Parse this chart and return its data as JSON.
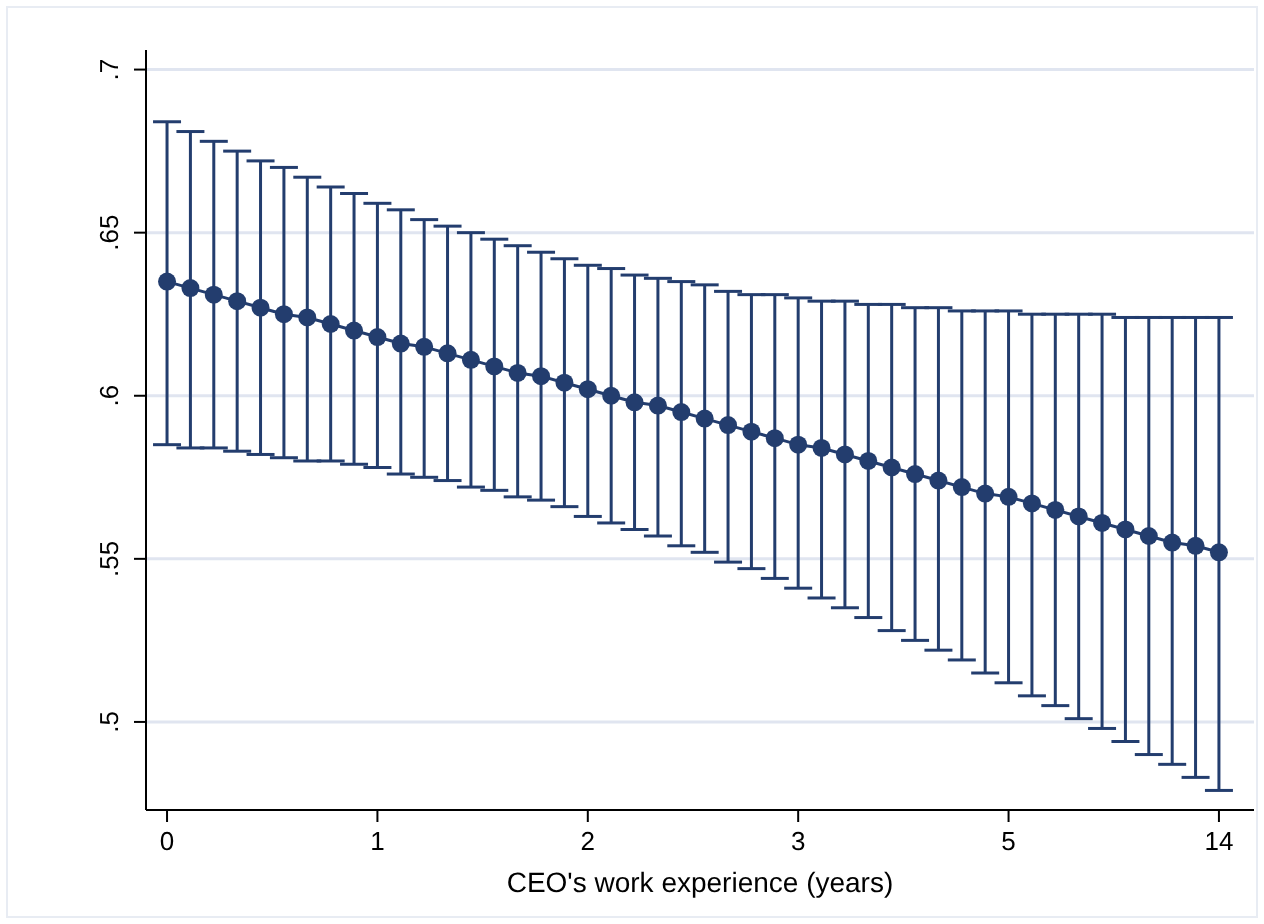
{
  "chart_data": {
    "type": "line",
    "xlabel": "CEO's work experience (years)",
    "categories": [
      "0",
      null,
      null,
      null,
      null,
      null,
      null,
      null,
      null,
      "1",
      null,
      null,
      null,
      null,
      null,
      null,
      null,
      null,
      "2",
      null,
      null,
      null,
      null,
      null,
      null,
      null,
      null,
      "3",
      null,
      null,
      null,
      null,
      null,
      null,
      null,
      null,
      "5",
      null,
      null,
      null,
      null,
      null,
      null,
      null,
      null,
      "14"
    ],
    "series": [
      {
        "color": "#233d6e",
        "marker": "circle",
        "values": [
          0.635,
          0.633,
          0.631,
          0.629,
          0.627,
          0.625,
          0.624,
          0.622,
          0.62,
          0.618,
          0.616,
          0.615,
          0.613,
          0.611,
          0.609,
          0.607,
          0.606,
          0.604,
          0.602,
          0.6,
          0.598,
          0.597,
          0.595,
          0.593,
          0.591,
          0.589,
          0.587,
          0.585,
          0.584,
          0.582,
          0.58,
          0.578,
          0.576,
          0.574,
          0.572,
          0.57,
          0.569,
          0.567,
          0.565,
          0.563,
          0.561,
          0.559,
          0.557,
          0.555,
          0.554,
          0.552
        ],
        "errors": [
          [
            0.585,
            0.684
          ],
          [
            0.584,
            0.681
          ],
          [
            0.584,
            0.678
          ],
          [
            0.583,
            0.675
          ],
          [
            0.582,
            0.672
          ],
          [
            0.581,
            0.67
          ],
          [
            0.58,
            0.667
          ],
          [
            0.58,
            0.664
          ],
          [
            0.579,
            0.662
          ],
          [
            0.578,
            0.659
          ],
          [
            0.576,
            0.657
          ],
          [
            0.575,
            0.654
          ],
          [
            0.574,
            0.652
          ],
          [
            0.572,
            0.65
          ],
          [
            0.571,
            0.648
          ],
          [
            0.569,
            0.646
          ],
          [
            0.568,
            0.644
          ],
          [
            0.566,
            0.642
          ],
          [
            0.563,
            0.64
          ],
          [
            0.561,
            0.639
          ],
          [
            0.559,
            0.637
          ],
          [
            0.557,
            0.636
          ],
          [
            0.554,
            0.635
          ],
          [
            0.552,
            0.634
          ],
          [
            0.549,
            0.632
          ],
          [
            0.547,
            0.631
          ],
          [
            0.544,
            0.631
          ],
          [
            0.541,
            0.63
          ],
          [
            0.538,
            0.629
          ],
          [
            0.535,
            0.629
          ],
          [
            0.532,
            0.628
          ],
          [
            0.528,
            0.628
          ],
          [
            0.525,
            0.627
          ],
          [
            0.522,
            0.627
          ],
          [
            0.519,
            0.626
          ],
          [
            0.515,
            0.626
          ],
          [
            0.512,
            0.626
          ],
          [
            0.508,
            0.625
          ],
          [
            0.505,
            0.625
          ],
          [
            0.501,
            0.625
          ],
          [
            0.498,
            0.625
          ],
          [
            0.494,
            0.624
          ],
          [
            0.49,
            0.624
          ],
          [
            0.487,
            0.624
          ],
          [
            0.483,
            0.624
          ],
          [
            0.479,
            0.624
          ]
        ]
      }
    ],
    "ylim": [
      0.473,
      0.706
    ],
    "yticks": [
      {
        "value": 0.5,
        "label": ".5"
      },
      {
        "value": 0.55,
        "label": ".55"
      },
      {
        "value": 0.6,
        "label": ".6"
      },
      {
        "value": 0.65,
        "label": ".65"
      },
      {
        "value": 0.7,
        "label": ".7"
      }
    ],
    "grid": "y"
  }
}
